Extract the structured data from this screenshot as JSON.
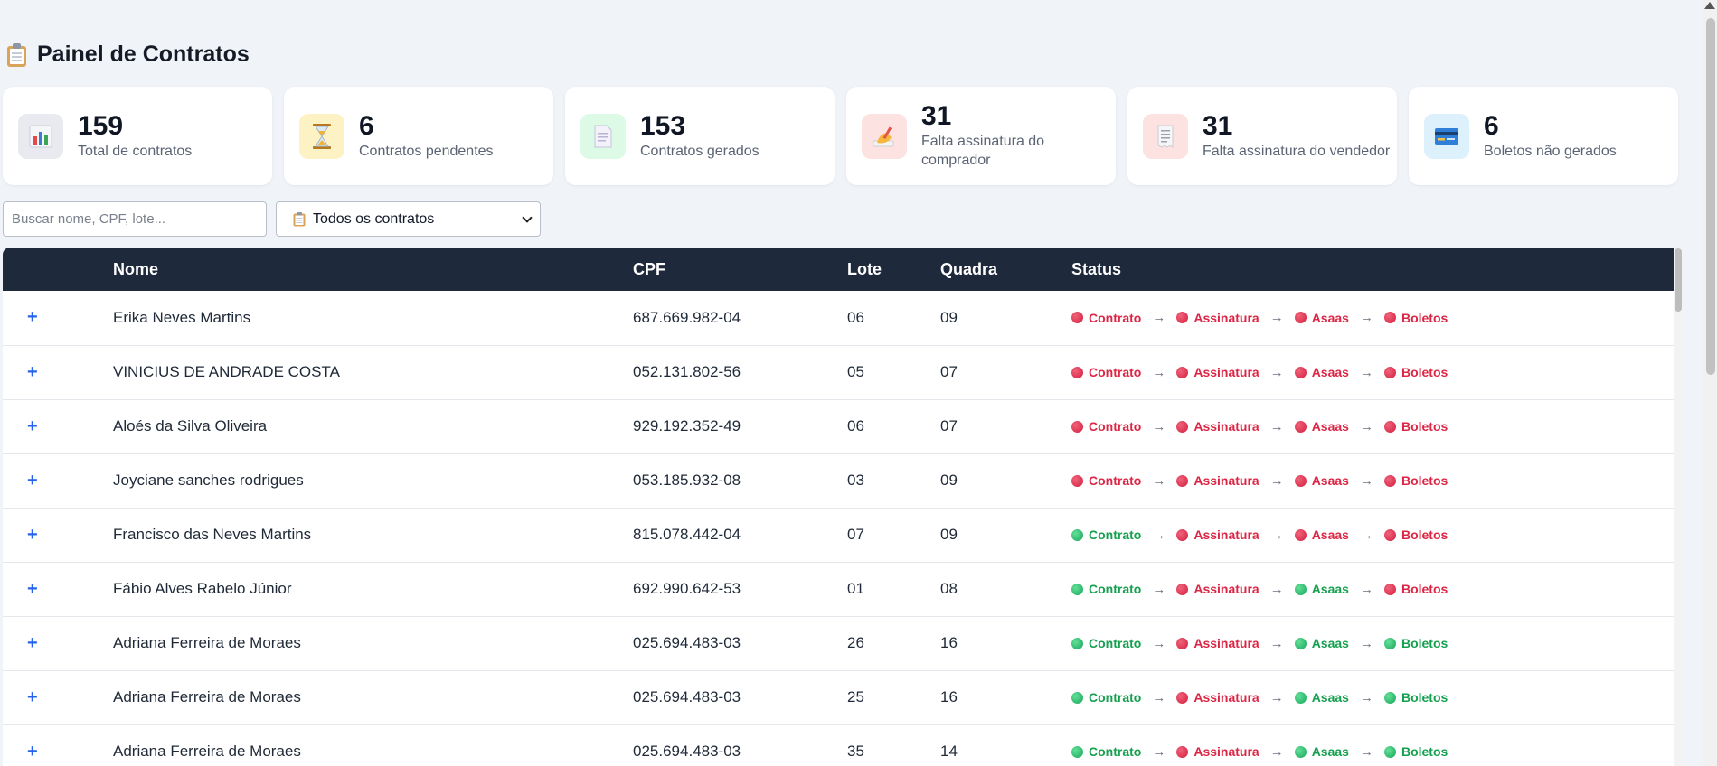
{
  "header": {
    "title": "Painel de Contratos",
    "icon": "clipboard-icon"
  },
  "cards": [
    {
      "value": "159",
      "label": "Total de contratos",
      "icon": "bar-chart-icon",
      "bg": "#e8eaef"
    },
    {
      "value": "6",
      "label": "Contratos pendentes",
      "icon": "hourglass-icon",
      "bg": "#fdf2c4"
    },
    {
      "value": "153",
      "label": "Contratos gerados",
      "icon": "document-icon",
      "bg": "#dcfae6"
    },
    {
      "value": "31",
      "label": "Falta assinatura do comprador",
      "icon": "writing-hand-icon",
      "bg": "#fde2e2"
    },
    {
      "value": "31",
      "label": "Falta assinatura do vendedor",
      "icon": "receipt-icon",
      "bg": "#fde2e2"
    },
    {
      "value": "6",
      "label": "Boletos não gerados",
      "icon": "credit-card-icon",
      "bg": "#dcf1fb"
    }
  ],
  "filters": {
    "search_placeholder": "Buscar nome, CPF, lote...",
    "select_value": "Todos os contratos"
  },
  "table": {
    "columns": [
      "",
      "Nome",
      "CPF",
      "Lote",
      "Quadra",
      "Status"
    ],
    "expand_symbol": "+",
    "arrow": "→",
    "step_labels": [
      "Contrato",
      "Assinatura",
      "Asaas",
      "Boletos"
    ],
    "status_colors": {
      "red": "#dc2645",
      "green": "#15a04f"
    },
    "rows": [
      {
        "nome": "Erika Neves Martins",
        "cpf": "687.669.982-04",
        "lote": "06",
        "quadra": "09",
        "status": [
          "red",
          "red",
          "red",
          "red"
        ]
      },
      {
        "nome": "VINICIUS DE ANDRADE COSTA",
        "cpf": "052.131.802-56",
        "lote": "05",
        "quadra": "07",
        "status": [
          "red",
          "red",
          "red",
          "red"
        ]
      },
      {
        "nome": "Aloés da Silva Oliveira",
        "cpf": "929.192.352-49",
        "lote": "06",
        "quadra": "07",
        "status": [
          "red",
          "red",
          "red",
          "red"
        ]
      },
      {
        "nome": "Joyciane sanches rodrigues",
        "cpf": "053.185.932-08",
        "lote": "03",
        "quadra": "09",
        "status": [
          "red",
          "red",
          "red",
          "red"
        ]
      },
      {
        "nome": "Francisco das Neves Martins",
        "cpf": "815.078.442-04",
        "lote": "07",
        "quadra": "09",
        "status": [
          "green",
          "red",
          "red",
          "red"
        ]
      },
      {
        "nome": "Fábio Alves Rabelo Júnior",
        "cpf": "692.990.642-53",
        "lote": "01",
        "quadra": "08",
        "status": [
          "green",
          "red",
          "green",
          "red"
        ]
      },
      {
        "nome": "Adriana Ferreira de Moraes",
        "cpf": "025.694.483-03",
        "lote": "26",
        "quadra": "16",
        "status": [
          "green",
          "red",
          "green",
          "green"
        ]
      },
      {
        "nome": "Adriana Ferreira de Moraes",
        "cpf": "025.694.483-03",
        "lote": "25",
        "quadra": "16",
        "status": [
          "green",
          "red",
          "green",
          "green"
        ]
      },
      {
        "nome": "Adriana Ferreira de Moraes",
        "cpf": "025.694.483-03",
        "lote": "35",
        "quadra": "14",
        "status": [
          "green",
          "red",
          "green",
          "green"
        ]
      }
    ]
  }
}
